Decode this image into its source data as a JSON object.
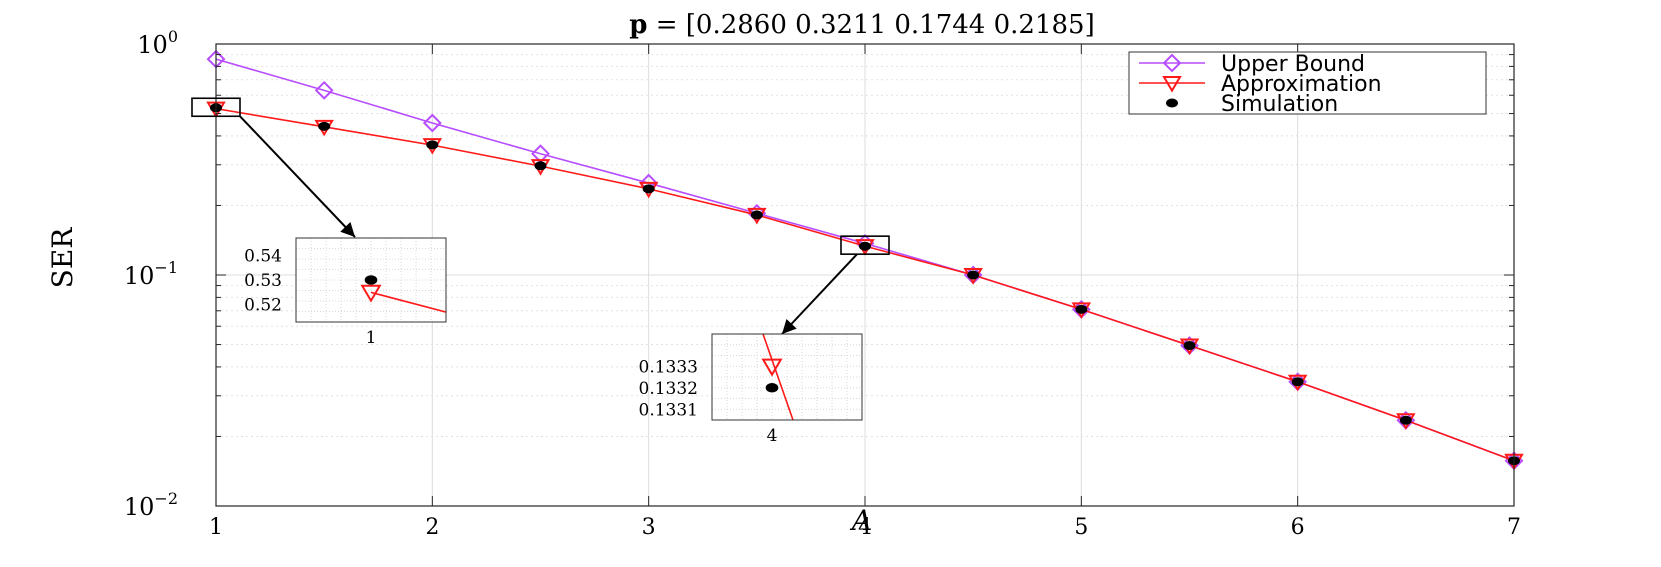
{
  "chart_data": {
    "type": "line",
    "title": "p = [0.2860 0.3211 0.1744 0.2185]",
    "title_bold_part": "p",
    "title_rest": " = [0.2860 0.3211 0.1744 0.2185]",
    "xlabel": "A",
    "ylabel": "SER",
    "xlim": [
      1,
      7
    ],
    "ylim": [
      0.01,
      1
    ],
    "yscale": "log",
    "grid": true,
    "legend_position": "top-right",
    "x_ticks": [
      "1",
      "2",
      "3",
      "4",
      "5",
      "6",
      "7"
    ],
    "y_ticks": [
      {
        "value": 1,
        "base": "10",
        "exp": "0"
      },
      {
        "value": 0.1,
        "base": "10",
        "exp": "−1"
      },
      {
        "value": 0.01,
        "base": "10",
        "exp": "−2"
      }
    ],
    "x": [
      1,
      1.5,
      2,
      2.5,
      3,
      3.5,
      4,
      4.5,
      5,
      5.5,
      6,
      6.5,
      7
    ],
    "series": [
      {
        "name": "Upper Bound",
        "color": "#b84dff",
        "marker": "diamond",
        "values": [
          0.86,
          0.63,
          0.455,
          0.335,
          0.25,
          0.185,
          0.137,
          0.1,
          0.071,
          0.0495,
          0.0345,
          0.0235,
          0.0157
        ]
      },
      {
        "name": "Approximation",
        "color": "#ff1a1a",
        "marker": "triangle-down",
        "values": [
          0.525,
          0.438,
          0.365,
          0.296,
          0.236,
          0.182,
          0.1333,
          0.1,
          0.071,
          0.0495,
          0.0345,
          0.0235,
          0.0157
        ]
      },
      {
        "name": "Simulation",
        "color": "#000000",
        "marker": "dot",
        "values": [
          0.53,
          0.44,
          0.366,
          0.297,
          0.236,
          0.182,
          0.1332,
          0.1,
          0.071,
          0.0495,
          0.0345,
          0.0235,
          0.0157
        ]
      }
    ],
    "insets": [
      {
        "id": "inset-1",
        "zoom_x": 1,
        "x_ticks": [
          "1"
        ],
        "y_ticks": [
          "0.54",
          "0.53",
          "0.52"
        ],
        "y_tick_values": [
          0.54,
          0.53,
          0.52
        ],
        "ylim": [
          0.513,
          0.547
        ],
        "xlim": [
          0.85,
          1.15
        ],
        "approx_line": [
          [
            1,
            0.525
          ],
          [
            1.15,
            0.517
          ]
        ],
        "approx_point": [
          1,
          0.525
        ],
        "sim_point": [
          1,
          0.53
        ]
      },
      {
        "id": "inset-2",
        "zoom_x": 4,
        "x_ticks": [
          "4"
        ],
        "y_ticks": [
          "0.1333",
          "0.1332",
          "0.1331"
        ],
        "y_tick_values": [
          0.1333,
          0.1332,
          0.1331
        ],
        "ylim": [
          0.13305,
          0.13345
        ],
        "xlim": [
          3.8,
          4.3
        ],
        "approx_line": [
          [
            3.97,
            0.13345
          ],
          [
            4.07,
            0.13305
          ]
        ],
        "approx_point": [
          4,
          0.1333
        ],
        "sim_point": [
          4,
          0.1332
        ]
      }
    ]
  }
}
